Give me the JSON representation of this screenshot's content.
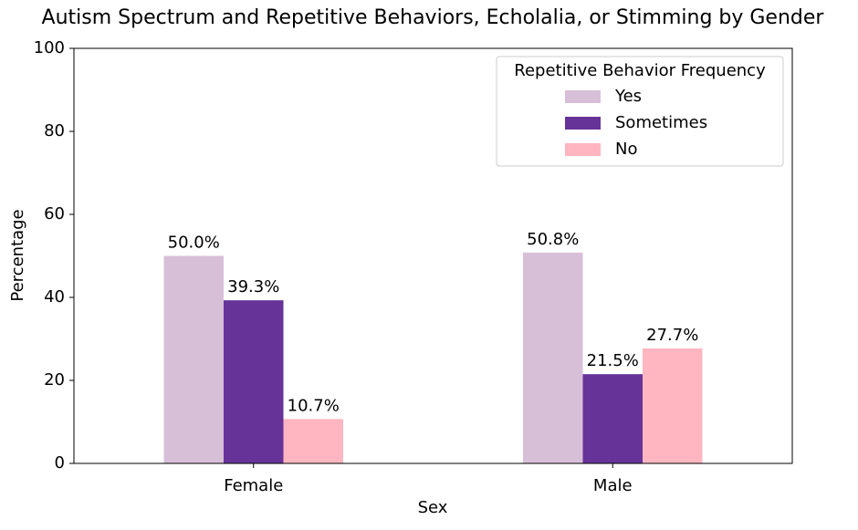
{
  "chart_data": {
    "type": "bar",
    "title": "Autism Spectrum and Repetitive Behaviors, Echolalia, or Stimming by Gender",
    "x_label": "Sex",
    "y_label": "Percentage",
    "categories": [
      "Female",
      "Male"
    ],
    "series": [
      {
        "name": "Yes",
        "color": "#d8bfd8",
        "values": [
          50.0,
          50.8
        ],
        "value_labels": [
          "50.0%",
          "50.8%"
        ]
      },
      {
        "name": "Sometimes",
        "color": "#663399",
        "values": [
          39.3,
          21.5
        ],
        "value_labels": [
          "39.3%",
          "21.5%"
        ]
      },
      {
        "name": "No",
        "color": "#ffb6c1",
        "values": [
          10.7,
          27.7
        ],
        "value_labels": [
          "10.7%",
          "27.7%"
        ]
      }
    ],
    "legend_title": "Repetitive Behavior Frequency",
    "legend_position": "upper right",
    "ylim": [
      0,
      100
    ],
    "yticks": [
      0,
      20,
      40,
      60,
      80,
      100
    ],
    "grid": false
  }
}
